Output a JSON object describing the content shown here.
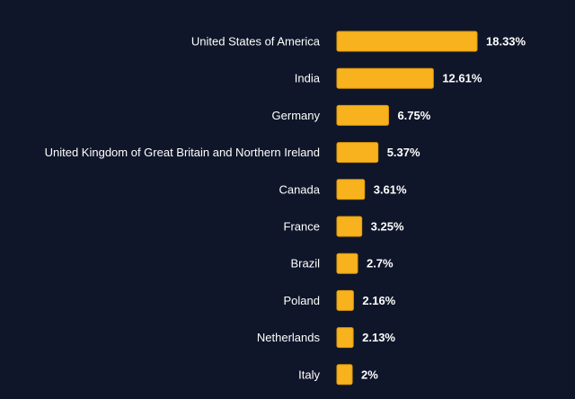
{
  "chart_data": {
    "type": "bar",
    "orientation": "horizontal",
    "categories": [
      "United States of America",
      "India",
      "Germany",
      "United Kingdom of Great Britain and Northern Ireland",
      "Canada",
      "France",
      "Brazil",
      "Poland",
      "Netherlands",
      "Italy"
    ],
    "values": [
      18.33,
      12.61,
      6.75,
      5.37,
      3.61,
      3.25,
      2.7,
      2.16,
      2.13,
      2
    ],
    "value_labels": [
      "18.33%",
      "12.61%",
      "6.75%",
      "5.37%",
      "3.61%",
      "3.25%",
      "2.7%",
      "2.16%",
      "2.13%",
      "2%"
    ],
    "title": "",
    "xlabel": "",
    "ylabel": "",
    "grid": false,
    "legend": "none"
  },
  "colors": {
    "background": "#0f1629",
    "bar": "#f7b21d",
    "bar_edge": "#e39a0c",
    "text": "#ffffff"
  }
}
